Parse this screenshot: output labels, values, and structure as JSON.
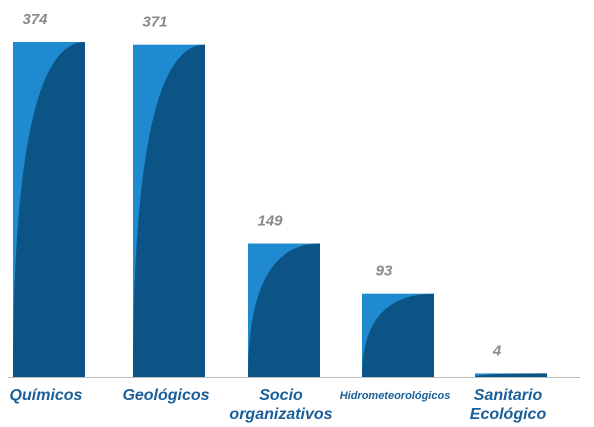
{
  "chart_data": {
    "type": "bar",
    "categories": [
      [
        "Químicos"
      ],
      [
        "Geológicos"
      ],
      [
        "Socio",
        "organizativos"
      ],
      [
        "Hidrometeorológicos"
      ],
      [
        "Sanitario",
        "Ecológico"
      ]
    ],
    "values": [
      374,
      371,
      149,
      93,
      4
    ],
    "color": "#1f8ad0",
    "shade_color": "#0b5485"
  }
}
